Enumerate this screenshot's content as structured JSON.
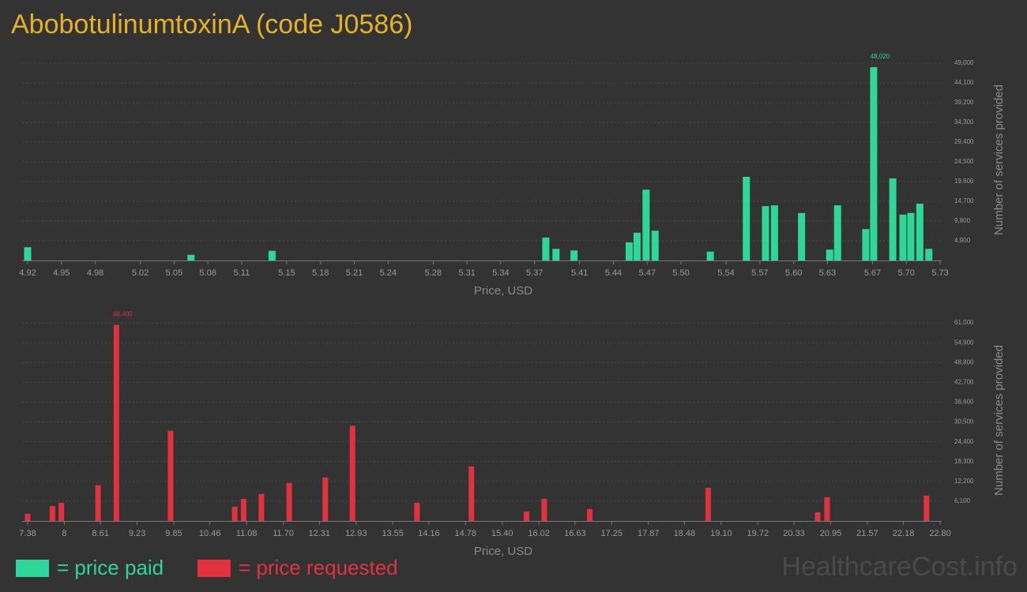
{
  "title": "AbobotulinumtoxinA (code J0586)",
  "legend": [
    {
      "label": "= price paid",
      "color": "#2ed69a"
    },
    {
      "label": "= price requested",
      "color": "#e2323f"
    }
  ],
  "watermark": "HealthcareCost.info",
  "chart_data": [
    {
      "type": "bar",
      "color": "#2ed69a",
      "grid": true,
      "xlabel": "Price, USD",
      "ylabel": "Number of services provided",
      "x": [
        4.92,
        5.065,
        5.137,
        5.38,
        5.389,
        5.405,
        5.454,
        5.461,
        5.469,
        5.477,
        5.526,
        5.558,
        5.575,
        5.583,
        5.607,
        5.632,
        5.639,
        5.664,
        5.671,
        5.688,
        5.697,
        5.704,
        5.712,
        5.72
      ],
      "values": [
        3300,
        1400,
        2400,
        5700,
        2900,
        2500,
        4500,
        6900,
        17600,
        7400,
        2200,
        20800,
        13500,
        13700,
        11800,
        2700,
        13700,
        7800,
        48020,
        20400,
        11400,
        11800,
        14100,
        2900
      ],
      "value_labels": [
        null,
        null,
        null,
        null,
        null,
        null,
        null,
        null,
        null,
        null,
        null,
        null,
        null,
        null,
        null,
        null,
        null,
        null,
        "48,020",
        null,
        null,
        null,
        null,
        null
      ],
      "xlim": [
        4.92,
        5.73
      ],
      "xticks": [
        4.92,
        4.95,
        4.98,
        5.02,
        5.05,
        5.08,
        5.11,
        5.15,
        5.18,
        5.21,
        5.24,
        5.28,
        5.31,
        5.34,
        5.37,
        5.41,
        5.44,
        5.47,
        {
          "value": 5.5,
          "label": "5.50"
        },
        5.54,
        5.57,
        {
          "value": 5.6,
          "label": "5.60"
        },
        5.63,
        5.67,
        {
          "value": 5.7,
          "label": "5.70"
        },
        5.73
      ],
      "ylim": [
        0,
        50000
      ],
      "yticks": [
        {
          "value": 4900,
          "label": "4,900"
        },
        {
          "value": 9800,
          "label": "9,800"
        },
        {
          "value": 14700,
          "label": "14,700"
        },
        {
          "value": 19600,
          "label": "19,600"
        },
        {
          "value": 24500,
          "label": "24,500"
        },
        {
          "value": 29400,
          "label": "29,400"
        },
        {
          "value": 34300,
          "label": "34,300"
        },
        {
          "value": 39200,
          "label": "39,200"
        },
        {
          "value": 44100,
          "label": "44,100"
        },
        {
          "value": 49000,
          "label": "49,000"
        }
      ]
    },
    {
      "type": "bar",
      "color": "#e2323f",
      "grid": true,
      "xlabel": "Price, USD",
      "ylabel": "Number of services provided",
      "x": [
        7.38,
        7.8,
        7.95,
        8.57,
        8.88,
        9.795,
        10.88,
        11.03,
        11.33,
        11.8,
        12.41,
        12.87,
        13.96,
        14.88,
        15.81,
        16.11,
        16.88,
        18.88,
        20.73,
        20.89,
        22.57
      ],
      "values": [
        2200,
        4600,
        5600,
        11000,
        60400,
        27800,
        4400,
        6800,
        8300,
        11700,
        13400,
        29300,
        5600,
        16800,
        2900,
        6800,
        3700,
        10200,
        2700,
        7300,
        7800
      ],
      "value_labels": [
        null,
        null,
        null,
        null,
        "60,400",
        null,
        null,
        null,
        null,
        null,
        null,
        null,
        null,
        null,
        null,
        null,
        null,
        null,
        null,
        null,
        null
      ],
      "xlim": [
        7.38,
        22.8
      ],
      "xticks": [
        7.38,
        8,
        8.61,
        9.23,
        9.85,
        10.46,
        11.08,
        {
          "value": 11.7,
          "label": "11.70"
        },
        12.31,
        12.93,
        13.55,
        14.16,
        14.78,
        {
          "value": 15.4,
          "label": "15.40"
        },
        16.02,
        16.63,
        17.25,
        17.87,
        18.48,
        {
          "value": 19.1,
          "label": "19.10"
        },
        19.72,
        20.33,
        20.95,
        21.57,
        22.18,
        {
          "value": 22.8,
          "label": "22.80"
        }
      ],
      "ylim": [
        0,
        62000
      ],
      "yticks": [
        {
          "value": 6100,
          "label": "6,100"
        },
        {
          "value": 12200,
          "label": "12,200"
        },
        {
          "value": 18300,
          "label": "18,300"
        },
        {
          "value": 24400,
          "label": "24,400"
        },
        {
          "value": 30500,
          "label": "30,500"
        },
        {
          "value": 36600,
          "label": "36,600"
        },
        {
          "value": 42700,
          "label": "42,700"
        },
        {
          "value": 48800,
          "label": "48,800"
        },
        {
          "value": 54900,
          "label": "54,900"
        },
        {
          "value": 61000,
          "label": "61,000"
        }
      ]
    }
  ]
}
